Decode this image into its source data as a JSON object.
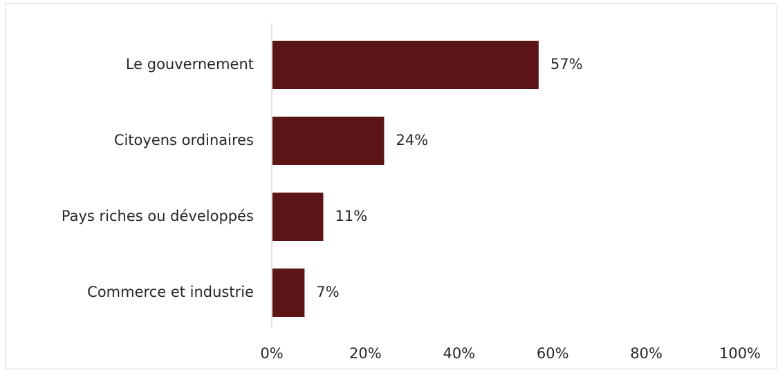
{
  "chart_data": {
    "type": "bar",
    "orientation": "horizontal",
    "title": "",
    "xlabel": "",
    "ylabel": "",
    "categories": [
      "Le gouvernement",
      "Citoyens ordinaires",
      "Pays riches ou développés",
      "Commerce et industrie"
    ],
    "values": [
      57,
      24,
      11,
      7
    ],
    "value_labels": [
      "57%",
      "24%",
      "11%",
      "7%"
    ],
    "xlim": [
      0,
      100
    ],
    "x_ticks": [
      0,
      20,
      40,
      60,
      80,
      100
    ],
    "x_tick_labels": [
      "0%",
      "20%",
      "40%",
      "60%",
      "80%",
      "100%"
    ],
    "grid": false,
    "legend": "none",
    "bar_color": "#5c1517",
    "axis_color": "#d9d9d9",
    "text_color": "#262626"
  }
}
